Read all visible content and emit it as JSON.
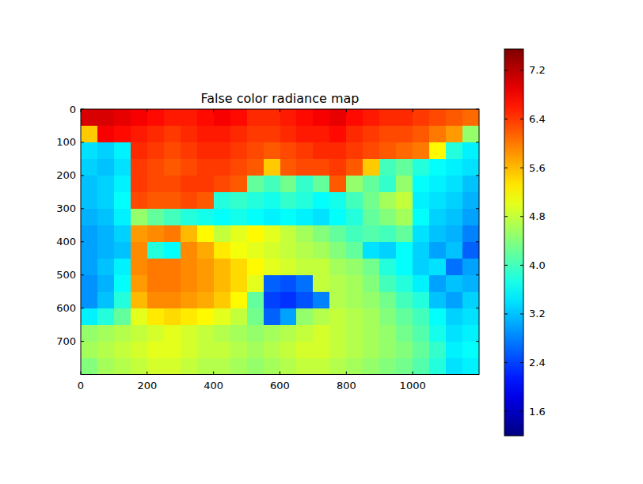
{
  "chart_data": {
    "type": "heatmap",
    "title": "False color radiance map",
    "color": "jet",
    "xlim": [
      0,
      1200
    ],
    "ylim": [
      800,
      0
    ],
    "xticks": [
      0,
      200,
      400,
      600,
      800,
      1000
    ],
    "yticks": [
      0,
      100,
      200,
      300,
      400,
      500,
      600,
      700
    ],
    "cells": [
      [
        7.0,
        7.0,
        6.9,
        6.8,
        6.7,
        6.6,
        6.6,
        6.7,
        6.8,
        6.7,
        6.5,
        6.5,
        6.6,
        6.7,
        6.8,
        6.9,
        6.7,
        6.6,
        6.5,
        6.5,
        6.4,
        6.3,
        6.2,
        6.1
      ],
      [
        5.5,
        6.8,
        6.7,
        6.6,
        6.5,
        6.4,
        6.5,
        6.6,
        6.6,
        6.5,
        6.4,
        6.4,
        6.5,
        6.6,
        6.6,
        6.7,
        6.5,
        6.4,
        6.3,
        6.3,
        6.2,
        6.0,
        5.8,
        4.5
      ],
      [
        3.4,
        3.3,
        3.5,
        6.5,
        6.4,
        6.3,
        6.4,
        6.5,
        6.5,
        6.4,
        6.3,
        6.2,
        6.3,
        6.4,
        6.5,
        6.5,
        6.4,
        6.3,
        6.2,
        6.1,
        6.0,
        5.2,
        3.8,
        3.5
      ],
      [
        3.3,
        3.2,
        3.4,
        6.4,
        6.3,
        6.2,
        6.3,
        6.4,
        6.4,
        6.3,
        6.2,
        5.5,
        6.2,
        6.3,
        6.3,
        6.4,
        6.2,
        5.5,
        4.0,
        4.2,
        3.8,
        3.6,
        3.5,
        3.4
      ],
      [
        3.2,
        3.3,
        3.5,
        6.4,
        6.3,
        6.3,
        6.4,
        6.4,
        6.3,
        6.2,
        4.2,
        4.0,
        4.3,
        3.9,
        4.2,
        6.2,
        4.5,
        4.2,
        3.9,
        4.5,
        3.6,
        3.5,
        3.4,
        3.2
      ],
      [
        3.2,
        3.3,
        3.6,
        6.3,
        6.2,
        6.2,
        6.3,
        6.2,
        3.8,
        3.9,
        3.8,
        3.7,
        3.9,
        3.8,
        3.6,
        3.7,
        4.0,
        4.3,
        4.6,
        4.8,
        3.5,
        3.4,
        3.3,
        3.1
      ],
      [
        3.1,
        3.2,
        3.5,
        4.5,
        4.2,
        4.0,
        3.8,
        3.7,
        3.6,
        3.7,
        3.6,
        3.5,
        3.6,
        3.5,
        3.4,
        3.6,
        3.8,
        4.2,
        4.4,
        4.6,
        3.6,
        3.3,
        3.2,
        3.0
      ],
      [
        3.0,
        3.1,
        3.3,
        5.8,
        5.9,
        6.0,
        5.6,
        5.2,
        4.8,
        5.0,
        5.2,
        5.0,
        4.8,
        4.6,
        4.4,
        4.2,
        4.0,
        4.1,
        4.0,
        4.2,
        3.4,
        3.2,
        3.1,
        2.8
      ],
      [
        3.0,
        3.1,
        3.2,
        5.9,
        3.8,
        3.6,
        5.9,
        5.7,
        5.3,
        5.1,
        5.0,
        4.9,
        4.8,
        4.7,
        4.6,
        4.4,
        4.2,
        3.4,
        3.3,
        3.6,
        3.3,
        3.0,
        3.2,
        2.6
      ],
      [
        3.0,
        3.2,
        3.5,
        5.9,
        6.0,
        6.0,
        5.9,
        5.8,
        5.6,
        5.4,
        5.2,
        5.0,
        4.9,
        4.8,
        4.8,
        4.6,
        4.5,
        4.3,
        3.8,
        3.6,
        3.3,
        3.4,
        2.7,
        3.0
      ],
      [
        2.9,
        3.1,
        3.6,
        5.8,
        6.0,
        6.0,
        5.9,
        5.8,
        5.6,
        5.4,
        5.0,
        2.6,
        2.5,
        2.7,
        4.8,
        4.7,
        4.6,
        4.4,
        4.0,
        3.8,
        3.5,
        3.0,
        3.2,
        3.1
      ],
      [
        2.9,
        3.2,
        3.8,
        5.6,
        5.9,
        5.9,
        5.8,
        5.7,
        5.5,
        5.2,
        4.2,
        2.4,
        2.3,
        2.5,
        2.8,
        4.7,
        4.6,
        4.5,
        4.3,
        4.0,
        3.8,
        3.2,
        3.0,
        3.3
      ],
      [
        3.5,
        3.8,
        4.2,
        5.0,
        5.3,
        5.4,
        5.3,
        5.2,
        5.0,
        4.8,
        4.3,
        2.6,
        3.0,
        4.5,
        4.7,
        4.8,
        4.7,
        4.6,
        4.4,
        4.2,
        4.0,
        3.6,
        3.3,
        3.4
      ],
      [
        4.5,
        4.6,
        4.7,
        4.8,
        4.9,
        5.0,
        4.9,
        4.8,
        4.7,
        4.6,
        4.5,
        4.6,
        4.7,
        4.8,
        4.9,
        4.8,
        4.7,
        4.6,
        4.5,
        4.3,
        4.1,
        3.7,
        3.4,
        3.5
      ],
      [
        4.6,
        4.7,
        4.8,
        4.9,
        5.0,
        5.0,
        4.9,
        4.8,
        4.8,
        4.7,
        4.6,
        4.7,
        4.8,
        4.9,
        4.9,
        4.8,
        4.7,
        4.6,
        4.5,
        4.4,
        4.2,
        3.9,
        3.5,
        3.6
      ],
      [
        4.4,
        4.6,
        4.7,
        4.8,
        4.9,
        4.9,
        4.8,
        4.7,
        4.7,
        4.6,
        4.5,
        4.6,
        4.7,
        4.8,
        4.8,
        4.7,
        4.6,
        4.5,
        4.4,
        4.3,
        4.1,
        3.8,
        3.4,
        3.5
      ]
    ],
    "colorbar": {
      "range": [
        1.2,
        7.55
      ],
      "ticks": [
        1.6,
        2.4,
        3.2,
        {
          "value": 4,
          "label": "4.0"
        },
        4.8,
        5.6,
        6.4,
        7.2
      ]
    }
  }
}
